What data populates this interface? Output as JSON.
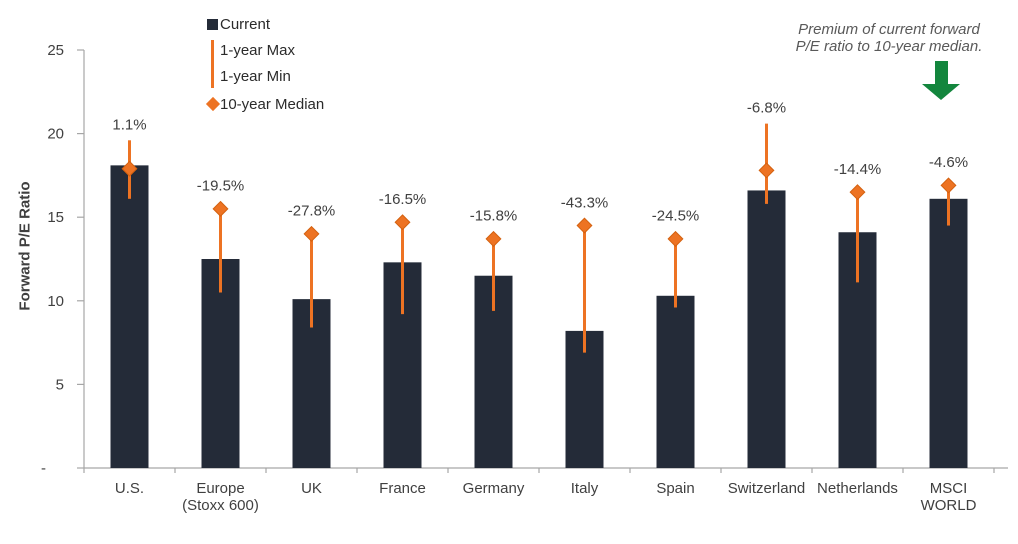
{
  "legend": {
    "current": "Current",
    "max": "1-year Max",
    "min": "1-year Min",
    "median": "10-year Median"
  },
  "annotation": {
    "line1": "Premium of current forward",
    "line2": "P/E ratio to 10-year median."
  },
  "colors": {
    "bar": "#242B38",
    "accent_orange": "#ED7323",
    "diamond_edge": "#D4610F",
    "arrow_green": "#13863D",
    "axis": "#A6A6A6",
    "text": "#404040"
  },
  "chart_data": {
    "type": "bar",
    "title": "",
    "ylabel": "Forward P/E Ratio",
    "xlabel": "",
    "ylim": [
      0,
      25
    ],
    "grid": false,
    "legend_position": "top-left",
    "yticks": [
      {
        "value": 25,
        "label": "25"
      },
      {
        "value": 20,
        "label": "20"
      },
      {
        "value": 15,
        "label": "15"
      },
      {
        "value": 10,
        "label": "10"
      },
      {
        "value": 5,
        "label": "5"
      },
      {
        "value": 0,
        "label": "-"
      }
    ],
    "categories": [
      "U.S.",
      "Europe (Stoxx 600)",
      "UK",
      "France",
      "Germany",
      "Italy",
      "Spain",
      "Switzerland",
      "Netherlands",
      "MSCI WORLD"
    ],
    "category_label_lines": [
      [
        "U.S."
      ],
      [
        "Europe",
        "(Stoxx 600)"
      ],
      [
        "UK"
      ],
      [
        "France"
      ],
      [
        "Germany"
      ],
      [
        "Italy"
      ],
      [
        "Spain"
      ],
      [
        "Switzerland"
      ],
      [
        "Netherlands"
      ],
      [
        "MSCI",
        "WORLD"
      ]
    ],
    "series": [
      {
        "name": "Current",
        "values": [
          18.1,
          12.5,
          10.1,
          12.3,
          11.5,
          8.2,
          10.3,
          16.6,
          14.1,
          16.1
        ]
      },
      {
        "name": "1-year Max",
        "values": [
          19.6,
          15.5,
          14.0,
          14.8,
          13.7,
          14.5,
          13.7,
          20.6,
          16.5,
          16.9
        ]
      },
      {
        "name": "1-year Min",
        "values": [
          16.1,
          10.5,
          8.4,
          9.2,
          9.4,
          6.9,
          9.6,
          15.8,
          11.1,
          14.5
        ]
      },
      {
        "name": "10-year Median",
        "values": [
          17.9,
          15.5,
          14.0,
          14.7,
          13.7,
          14.5,
          13.7,
          17.8,
          16.5,
          16.9
        ]
      }
    ],
    "premium_labels": [
      "1.1%",
      "-19.5%",
      "-27.8%",
      "-16.5%",
      "-15.8%",
      "-43.3%",
      "-24.5%",
      "-6.8%",
      "-14.4%",
      "-4.6%"
    ]
  }
}
